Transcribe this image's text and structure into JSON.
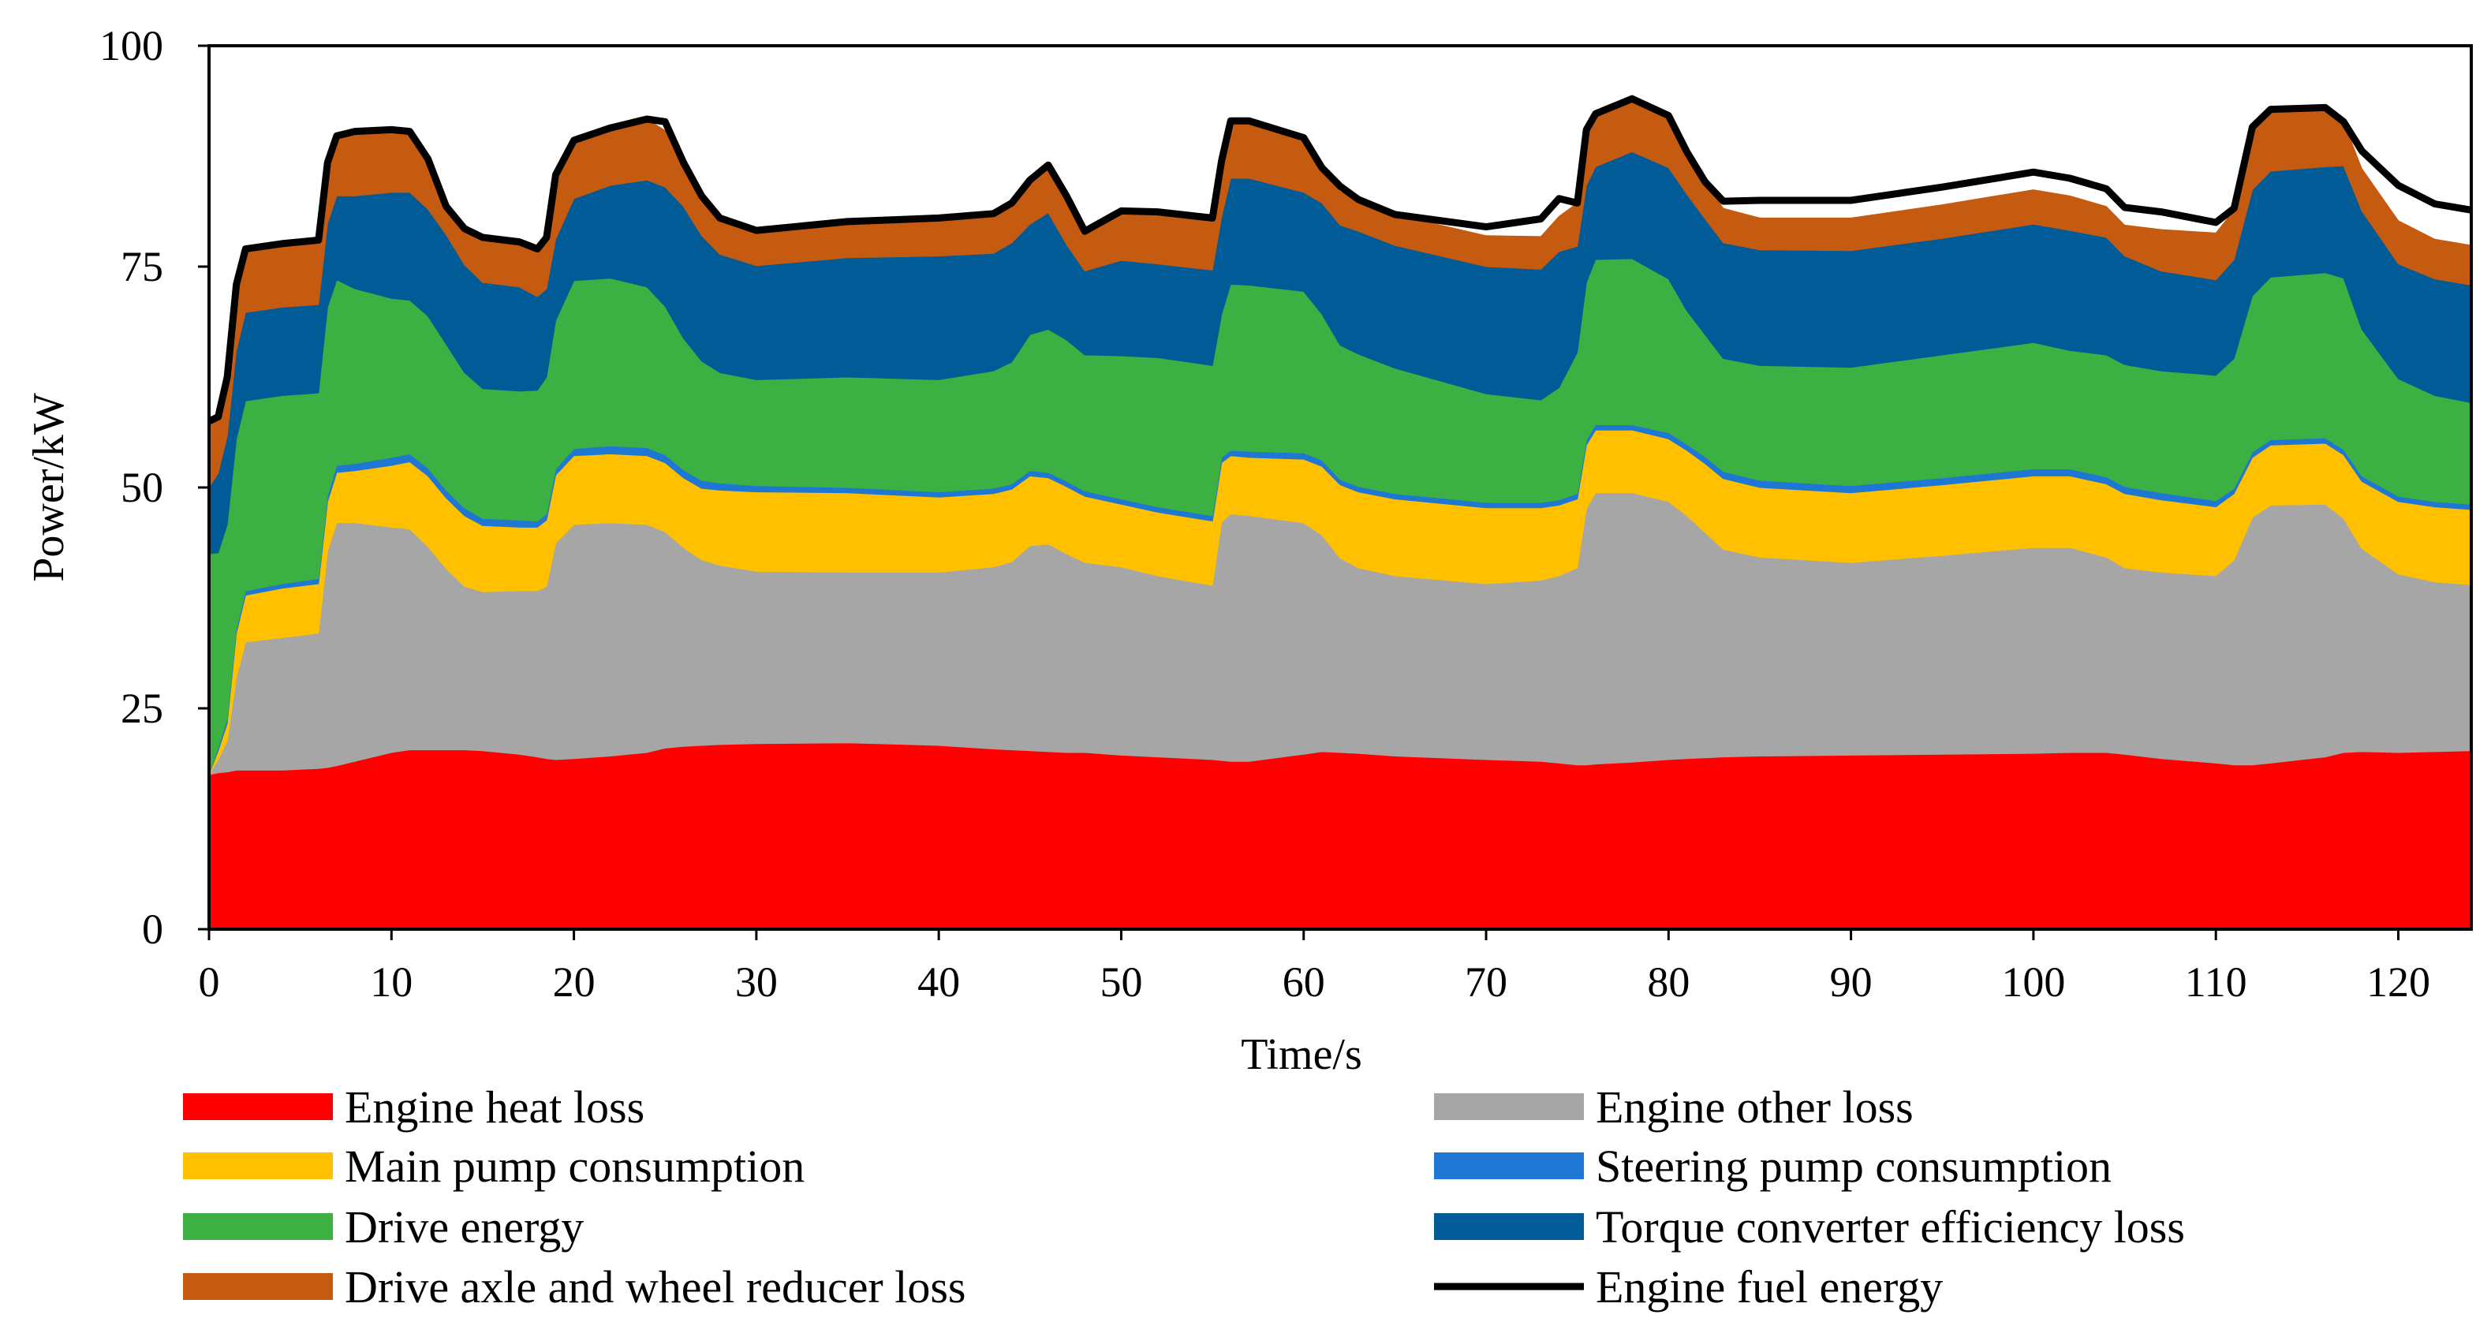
{
  "chart_data": {
    "type": "area",
    "stacked": true,
    "title": "",
    "xlabel": "Time/s",
    "ylabel": "Power/kW",
    "xlim": [
      0,
      124
    ],
    "ylim": [
      0,
      100
    ],
    "xticks": [
      "0",
      "10",
      "20",
      "30",
      "40",
      "50",
      "60",
      "70",
      "80",
      "90",
      "100",
      "110",
      "120"
    ],
    "yticks": [
      "0",
      "25",
      "50",
      "75",
      "100"
    ],
    "grid": false,
    "legend_position": "bottom",
    "x": [
      0,
      0.5,
      1,
      1.5,
      2,
      4,
      6,
      6.5,
      7,
      8,
      10,
      11,
      12,
      13,
      14,
      15,
      17,
      18,
      18.5,
      19,
      20,
      22,
      24,
      25,
      26,
      27,
      28,
      30,
      35,
      40,
      43,
      44,
      45,
      46,
      47,
      48,
      50,
      52,
      55,
      55.5,
      56,
      57,
      60,
      61,
      62,
      63,
      65,
      70,
      73,
      74,
      75,
      75.5,
      76,
      78,
      80,
      81,
      82,
      83,
      85,
      90,
      95,
      100,
      102,
      104,
      105,
      107,
      110,
      111,
      112,
      113,
      116,
      117,
      118,
      120,
      122,
      124
    ],
    "series": [
      {
        "name": "Engine heat loss",
        "color": "#ff0000",
        "values": [
          17.5,
          17.7,
          17.8,
          18,
          18,
          18,
          18.2,
          18.3,
          18.5,
          19,
          20,
          20.3,
          20.3,
          20.3,
          20.3,
          20.2,
          19.8,
          19.5,
          19.3,
          19.2,
          19.3,
          19.6,
          20,
          20.5,
          20.7,
          20.8,
          20.9,
          21,
          21.1,
          20.8,
          20.4,
          20.3,
          20.2,
          20.1,
          20,
          20,
          19.7,
          19.5,
          19.2,
          19.1,
          19,
          19,
          19.8,
          20.1,
          20,
          19.9,
          19.6,
          19.2,
          19,
          18.8,
          18.6,
          18.6,
          18.7,
          18.9,
          19.2,
          19.3,
          19.4,
          19.5,
          19.6,
          19.7,
          19.8,
          19.9,
          20,
          20,
          19.8,
          19.3,
          18.8,
          18.6,
          18.6,
          18.8,
          19.5,
          20,
          20.1,
          20,
          20.1,
          20.2
        ]
      },
      {
        "name": "Engine other loss",
        "color": "#a6a6a6",
        "values": [
          0,
          1.5,
          3.5,
          10.5,
          14.5,
          15,
          15.3,
          24.5,
          27.5,
          27,
          25.5,
          25,
          23,
          20.5,
          18.5,
          18,
          18.5,
          18.8,
          19.5,
          24.5,
          26.5,
          26.4,
          25.8,
          24.5,
          22.5,
          21,
          20.3,
          19.5,
          19.3,
          19.6,
          20.6,
          21.3,
          23.2,
          23.5,
          22.5,
          21.5,
          21.3,
          20.5,
          19.7,
          27,
          28,
          27.8,
          26.2,
          24.5,
          22,
          21,
          20.4,
          19.9,
          20.5,
          21.2,
          22.3,
          29,
          30.7,
          30.5,
          29.2,
          27.5,
          25.5,
          23.5,
          22.5,
          21.8,
          22.5,
          23.3,
          23.2,
          22.1,
          21.1,
          21.1,
          21.2,
          23.2,
          28,
          29.2,
          28.6,
          26.5,
          23,
          20.2,
          19.2,
          18.8
        ]
      },
      {
        "name": "Main pump consumption",
        "color": "#ffc000",
        "values": [
          0,
          1,
          2,
          5,
          5.3,
          5.6,
          5.6,
          5.6,
          5.7,
          5.9,
          7,
          7.6,
          8,
          8,
          8,
          7.5,
          7.2,
          7.2,
          7.5,
          7.7,
          7.8,
          7.8,
          7.8,
          7.8,
          7.9,
          8.1,
          8.5,
          9,
          9,
          8.5,
          8.3,
          8.2,
          7.9,
          7.5,
          7.6,
          7.5,
          7.1,
          7.2,
          7.3,
          6.7,
          6.6,
          6.6,
          7.2,
          7.8,
          8.3,
          8.6,
          8.7,
          8.6,
          8.2,
          8,
          7.8,
          7.2,
          7.1,
          7.1,
          7.1,
          7.4,
          7.8,
          8,
          7.9,
          7.9,
          8,
          8.1,
          8.1,
          8.3,
          8.4,
          8.2,
          7.8,
          7.5,
          6.8,
          6.8,
          6.9,
          7.2,
          7.6,
          8.2,
          8.5,
          8.5
        ]
      },
      {
        "name": "Steering pump consumption",
        "color": "#1f77d4",
        "values": [
          0,
          0.4,
          0.5,
          0.5,
          0.5,
          0.5,
          0.6,
          0.7,
          0.8,
          0.8,
          0.9,
          0.9,
          0.9,
          0.9,
          0.9,
          0.8,
          0.8,
          0.7,
          0.7,
          0.7,
          0.8,
          0.9,
          0.9,
          0.9,
          0.9,
          0.9,
          0.8,
          0.7,
          0.6,
          0.6,
          0.6,
          0.6,
          0.6,
          0.6,
          0.6,
          0.6,
          0.6,
          0.6,
          0.6,
          0.6,
          0.6,
          0.7,
          0.7,
          0.7,
          0.6,
          0.6,
          0.6,
          0.6,
          0.6,
          0.6,
          0.6,
          0.6,
          0.6,
          0.6,
          0.7,
          0.7,
          0.8,
          0.8,
          0.8,
          0.8,
          0.8,
          0.8,
          0.8,
          0.8,
          0.8,
          0.8,
          0.7,
          0.6,
          0.6,
          0.6,
          0.6,
          0.6,
          0.6,
          0.6,
          0.6,
          0.6
        ]
      },
      {
        "name": "Drive energy",
        "color": "#3cb043",
        "values": [
          25,
          22,
          22,
          21.5,
          21.5,
          21.3,
          21,
          21.3,
          21,
          19.8,
          18,
          17.4,
          17.2,
          16.5,
          15.3,
          14.7,
          14.6,
          14.8,
          15.5,
          16.8,
          19,
          19,
          18.2,
          16.8,
          14.9,
          13.5,
          12.5,
          12,
          12.5,
          12.7,
          13.3,
          13.8,
          15.4,
          16.2,
          16,
          15.4,
          16.2,
          16.9,
          17,
          16.2,
          18.8,
          18.8,
          18.3,
          16.5,
          15.2,
          15,
          14.2,
          12.3,
          11.6,
          12.7,
          16,
          17.8,
          18.7,
          18.8,
          17.4,
          15.1,
          13.8,
          12.8,
          13,
          13.4,
          13.9,
          14.3,
          13.4,
          13.8,
          13.8,
          13.8,
          14.2,
          14.7,
          17.7,
          18.4,
          18.7,
          19.4,
          16.6,
          13.3,
          12,
          11.5
        ]
      },
      {
        "name": "Torque converter efficiency loss",
        "color": "#005b96",
        "values": [
          7.5,
          9,
          10,
          10,
          10,
          10,
          10,
          9.5,
          9.5,
          10.5,
          12,
          12.2,
          12.1,
          12.4,
          12.2,
          12,
          11.8,
          10.6,
          10,
          9.2,
          9.3,
          10.5,
          12.1,
          13.5,
          14.9,
          14.2,
          13.4,
          12.9,
          13.5,
          14,
          13.3,
          13.5,
          12.5,
          13.2,
          10.8,
          9.5,
          10.8,
          10.6,
          10.8,
          11,
          12,
          12.1,
          11.2,
          12.6,
          13.6,
          13.9,
          13.9,
          14.4,
          14.8,
          15.4,
          12,
          11,
          10.5,
          12.1,
          12.6,
          13.2,
          13.1,
          13.1,
          13.1,
          13.2,
          13.2,
          13.4,
          13.6,
          13.3,
          12.3,
          11.3,
          10.8,
          11.2,
          12,
          12,
          12,
          12.7,
          13.4,
          13,
          13.2,
          13.3
        ]
      },
      {
        "name": "Drive axle and wheel reducer loss",
        "color": "#c55a11",
        "values": [
          7.5,
          6.4,
          6.7,
          7.5,
          7.3,
          7.2,
          7.3,
          6.9,
          6.8,
          7.3,
          7.1,
          6.9,
          5.7,
          3.6,
          4.1,
          5.1,
          5.1,
          5.4,
          5.8,
          7.3,
          6.6,
          6.5,
          6.9,
          6.4,
          5,
          4.5,
          4.1,
          4,
          4.1,
          4.3,
          4.5,
          4.5,
          5,
          5.4,
          5.5,
          4.5,
          5.6,
          5.9,
          5.9,
          6.4,
          6.5,
          6.5,
          6.2,
          4,
          3.8,
          3.6,
          3.5,
          3.5,
          3.7,
          4,
          4.9,
          6.3,
          6,
          6,
          5.9,
          4.8,
          4.2,
          3.9,
          3.6,
          3.7,
          3.8,
          3.9,
          3.9,
          3.5,
          3.5,
          4.7,
          5.3,
          5.6,
          7.1,
          7,
          6.7,
          5,
          4.8,
          4.9,
          4.5,
          4.5
        ]
      }
    ],
    "line": {
      "name": "Engine fuel energy",
      "color": "#000000",
      "values": [
        57.5,
        58,
        62.5,
        73,
        77,
        77.6,
        78,
        86.8,
        89.8,
        90.3,
        90.5,
        90.3,
        87.2,
        81.8,
        79.3,
        78.3,
        77.8,
        77,
        78.3,
        85.4,
        89.3,
        90.7,
        91.7,
        91.4,
        86.8,
        83,
        80.5,
        79.1,
        80.1,
        80.5,
        81,
        82.2,
        84.8,
        86.5,
        83,
        79,
        81.3,
        81.2,
        80.5,
        87,
        91.5,
        91.5,
        89.6,
        86.2,
        84.1,
        82.6,
        80.9,
        79.5,
        80.4,
        82.7,
        82.2,
        90.5,
        92.3,
        94,
        92.1,
        88,
        84.6,
        82.4,
        82.5,
        82.5,
        84,
        85.7,
        85,
        83.8,
        81.7,
        81.2,
        80,
        81.6,
        90.8,
        92.8,
        93,
        91.4,
        88.1,
        84.2,
        82.1,
        81.4
      ]
    },
    "legend": [
      {
        "label": "Engine heat loss",
        "color": "#ff0000",
        "kind": "area"
      },
      {
        "label": "Engine other loss",
        "color": "#a6a6a6",
        "kind": "area"
      },
      {
        "label": "Main pump consumption",
        "color": "#ffc000",
        "kind": "area"
      },
      {
        "label": "Steering pump consumption",
        "color": "#1f77d4",
        "kind": "area"
      },
      {
        "label": "Drive energy",
        "color": "#3cb043",
        "kind": "area"
      },
      {
        "label": "Torque converter efficiency loss",
        "color": "#005b96",
        "kind": "area"
      },
      {
        "label": "Drive axle and wheel reducer loss",
        "color": "#c55a11",
        "kind": "area"
      },
      {
        "label": "Engine fuel energy",
        "color": "#000000",
        "kind": "line"
      }
    ]
  }
}
